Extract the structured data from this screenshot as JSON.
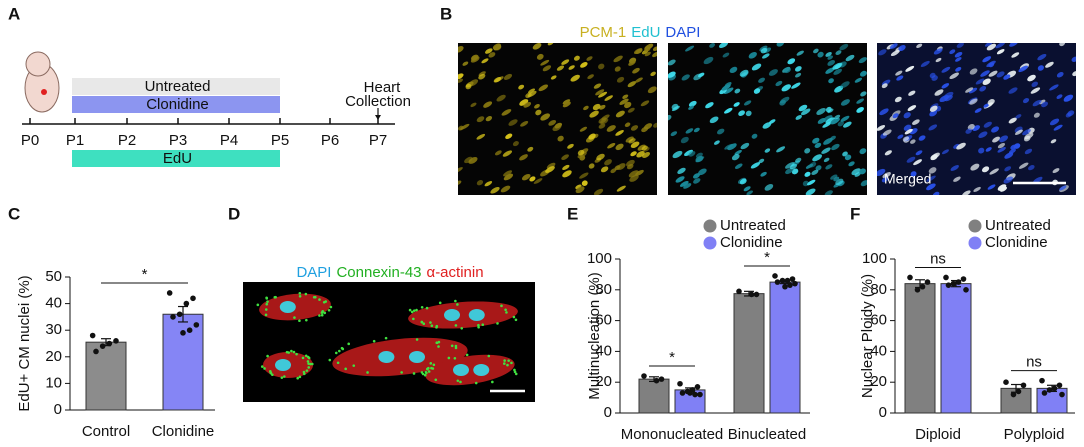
{
  "panel_a": {
    "label": "A",
    "time_points": [
      "P0",
      "P1",
      "P2",
      "P3",
      "P4",
      "P5",
      "P6",
      "P7"
    ],
    "treatments": [
      "Untreated",
      "Clonidine"
    ],
    "pulse": "EdU",
    "endpoint": [
      "Heart",
      "Collection"
    ]
  },
  "panel_b": {
    "label": "B",
    "stains": [
      "PCM-1",
      "EdU",
      "DAPI"
    ],
    "merged": "Merged"
  },
  "panel_d": {
    "label": "D",
    "stains": [
      "DAPI",
      "Connexin-43",
      "α-actinin"
    ]
  },
  "chart_data": [
    {
      "type": "bar",
      "panel_label": "C",
      "categories": [
        "Control",
        "Clonidine"
      ],
      "values": [
        25.5,
        36
      ],
      "errors": [
        1.3,
        2.9
      ],
      "points": [
        [
          28,
          26,
          25,
          24,
          22
        ],
        [
          44,
          42,
          40,
          36,
          35,
          32,
          30,
          29
        ]
      ],
      "colors": [
        "#8c8c8c",
        "#8585f5"
      ],
      "ylabel": "EdU+ CM nuclei (%)",
      "ylim": [
        0,
        50
      ],
      "yticks": [
        0,
        10,
        20,
        30,
        40,
        50
      ],
      "annotations": [
        "*"
      ]
    },
    {
      "type": "bar",
      "panel_label": "E",
      "categories": [
        "Mononucleated",
        "Binucleated"
      ],
      "series": [
        {
          "name": "Untreated",
          "color": "#808080",
          "values": [
            22,
            77.5
          ],
          "errors": [
            1.5,
            1.5
          ],
          "points": [
            [
              24,
              22,
              21
            ],
            [
              79,
              77,
              77
            ]
          ]
        },
        {
          "name": "Clonidine",
          "color": "#8080f5",
          "values": [
            15,
            85
          ],
          "errors": [
            1.3,
            1
          ],
          "points": [
            [
              19,
              17,
              15,
              14,
              13,
              12,
              12,
              13
            ],
            [
              89,
              87,
              86,
              86,
              85,
              84,
              83,
              82
            ]
          ]
        }
      ],
      "ylabel": "Multinucleation (%)",
      "ylim": [
        0,
        100
      ],
      "yticks": [
        0,
        20,
        40,
        60,
        80,
        100
      ],
      "annotations": [
        "*",
        "*"
      ],
      "legend": "top-right"
    },
    {
      "type": "bar",
      "panel_label": "F",
      "categories": [
        "Diploid",
        "Polyploid"
      ],
      "series": [
        {
          "name": "Untreated",
          "color": "#808080",
          "values": [
            84,
            16
          ],
          "errors": [
            2.5,
            2.5
          ],
          "points": [
            [
              88,
              85,
              82,
              80
            ],
            [
              20,
              18,
              14,
              12
            ]
          ]
        },
        {
          "name": "Clonidine",
          "color": "#8080f5",
          "values": [
            84,
            16
          ],
          "errors": [
            2,
            2
          ],
          "points": [
            [
              88,
              87,
              85,
              84,
              83,
              80
            ],
            [
              21,
              18,
              16,
              15,
              13,
              12
            ]
          ]
        }
      ],
      "ylabel": "Nuclear Ploidy (%)",
      "ylim": [
        0,
        100
      ],
      "yticks": [
        0,
        20,
        40,
        60,
        80,
        100
      ],
      "annotations": [
        "ns",
        "ns"
      ],
      "legend": "top-right"
    }
  ]
}
